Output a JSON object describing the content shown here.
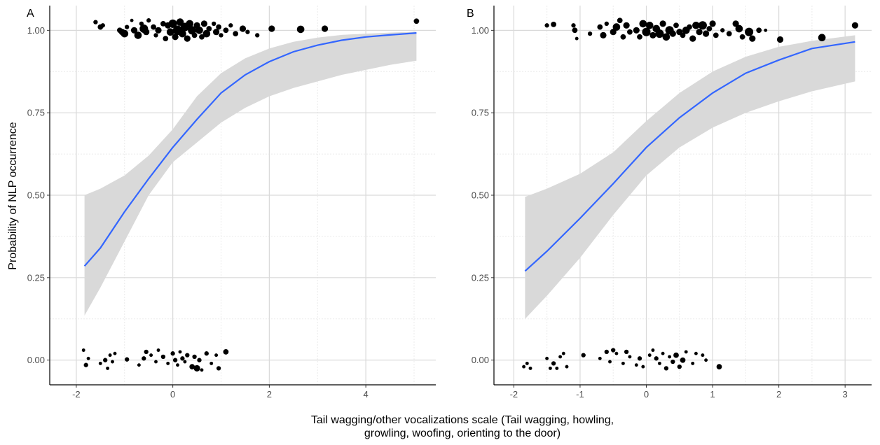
{
  "figure": {
    "ylabel": "Probability of NLP occurrence",
    "xlabel_line1": "Tail wagging/other vocalizations scale (Tail wagging, howling,",
    "xlabel_line2": "growling, woofing, orienting to the door)"
  },
  "colors": {
    "curve": "#3366ff",
    "band": "#d9d9d9",
    "points": "#000000",
    "grid_major": "#d9d9d9",
    "grid_minor": "#ebebeb"
  },
  "chart_data": [
    {
      "type": "scatter",
      "panel_label": "A",
      "xlim": [
        -2.55,
        5.45
      ],
      "ylim": [
        -0.075,
        1.075
      ],
      "x_ticks": [
        -2,
        0,
        2,
        4
      ],
      "x_tick_labels": [
        "-2",
        "0",
        "2",
        "4"
      ],
      "y_ticks": [
        0,
        0.25,
        0.5,
        0.75,
        1
      ],
      "y_tick_labels": [
        "0.00",
        "0.25",
        "0.50",
        "0.75",
        "1.00"
      ],
      "grid": true,
      "fit": {
        "x": [
          -1.83,
          -1.5,
          -1.0,
          -0.5,
          0.0,
          0.5,
          1.0,
          1.5,
          2.0,
          2.5,
          3.0,
          3.5,
          4.0,
          4.5,
          5.05
        ],
        "y": [
          0.285,
          0.34,
          0.45,
          0.55,
          0.645,
          0.73,
          0.81,
          0.865,
          0.905,
          0.935,
          0.955,
          0.97,
          0.98,
          0.986,
          0.992
        ],
        "lower": [
          0.135,
          0.22,
          0.36,
          0.5,
          0.6,
          0.66,
          0.72,
          0.765,
          0.8,
          0.825,
          0.845,
          0.865,
          0.88,
          0.895,
          0.908
        ],
        "upper": [
          0.5,
          0.52,
          0.56,
          0.62,
          0.7,
          0.8,
          0.87,
          0.915,
          0.945,
          0.965,
          0.978,
          0.986,
          0.99,
          0.993,
          0.996
        ]
      },
      "points": [
        {
          "x": -1.6,
          "y": 1.025,
          "s": 3
        },
        {
          "x": -1.5,
          "y": 1.01,
          "s": 4
        },
        {
          "x": -1.45,
          "y": 1.015,
          "s": 3
        },
        {
          "x": -1.1,
          "y": 1.0,
          "s": 4
        },
        {
          "x": -1.05,
          "y": 0.995,
          "s": 5
        },
        {
          "x": -1.0,
          "y": 0.99,
          "s": 6
        },
        {
          "x": -0.95,
          "y": 1.01,
          "s": 3
        },
        {
          "x": -0.85,
          "y": 1.03,
          "s": 2
        },
        {
          "x": -0.8,
          "y": 1.0,
          "s": 5
        },
        {
          "x": -0.72,
          "y": 0.985,
          "s": 6
        },
        {
          "x": -0.65,
          "y": 1.02,
          "s": 3
        },
        {
          "x": -0.6,
          "y": 1.005,
          "s": 7
        },
        {
          "x": -0.55,
          "y": 0.995,
          "s": 5
        },
        {
          "x": -0.5,
          "y": 1.03,
          "s": 3
        },
        {
          "x": -0.4,
          "y": 1.01,
          "s": 4
        },
        {
          "x": -0.35,
          "y": 0.985,
          "s": 3
        },
        {
          "x": -0.3,
          "y": 1.0,
          "s": 5
        },
        {
          "x": -0.2,
          "y": 1.02,
          "s": 4
        },
        {
          "x": -0.15,
          "y": 0.975,
          "s": 4
        },
        {
          "x": -0.1,
          "y": 1.015,
          "s": 5
        },
        {
          "x": -0.05,
          "y": 0.995,
          "s": 6
        },
        {
          "x": 0.0,
          "y": 1.02,
          "s": 7
        },
        {
          "x": 0.05,
          "y": 0.98,
          "s": 5
        },
        {
          "x": 0.1,
          "y": 1.0,
          "s": 8
        },
        {
          "x": 0.15,
          "y": 1.025,
          "s": 6
        },
        {
          "x": 0.2,
          "y": 0.99,
          "s": 6
        },
        {
          "x": 0.25,
          "y": 1.01,
          "s": 7
        },
        {
          "x": 0.3,
          "y": 0.975,
          "s": 5
        },
        {
          "x": 0.35,
          "y": 1.02,
          "s": 6
        },
        {
          "x": 0.4,
          "y": 1.0,
          "s": 7
        },
        {
          "x": 0.45,
          "y": 0.985,
          "s": 4
        },
        {
          "x": 0.5,
          "y": 1.015,
          "s": 5
        },
        {
          "x": 0.55,
          "y": 1.0,
          "s": 6
        },
        {
          "x": 0.6,
          "y": 0.98,
          "s": 4
        },
        {
          "x": 0.65,
          "y": 1.02,
          "s": 5
        },
        {
          "x": 0.7,
          "y": 0.99,
          "s": 6
        },
        {
          "x": 0.75,
          "y": 1.005,
          "s": 4
        },
        {
          "x": 0.85,
          "y": 1.02,
          "s": 3
        },
        {
          "x": 0.9,
          "y": 0.995,
          "s": 5
        },
        {
          "x": 0.95,
          "y": 1.01,
          "s": 4
        },
        {
          "x": 1.0,
          "y": 0.985,
          "s": 3
        },
        {
          "x": 1.1,
          "y": 1.0,
          "s": 4
        },
        {
          "x": 1.2,
          "y": 1.015,
          "s": 3
        },
        {
          "x": 1.3,
          "y": 0.99,
          "s": 4
        },
        {
          "x": 1.45,
          "y": 1.005,
          "s": 5
        },
        {
          "x": 1.55,
          "y": 0.995,
          "s": 3
        },
        {
          "x": 1.75,
          "y": 0.985,
          "s": 3
        },
        {
          "x": 2.05,
          "y": 1.005,
          "s": 5
        },
        {
          "x": 2.65,
          "y": 1.003,
          "s": 6
        },
        {
          "x": 3.15,
          "y": 1.005,
          "s": 5
        },
        {
          "x": 5.05,
          "y": 1.028,
          "s": 4
        },
        {
          "x": -1.85,
          "y": 0.03,
          "s": 2
        },
        {
          "x": -1.8,
          "y": -0.015,
          "s": 3
        },
        {
          "x": -1.75,
          "y": 0.005,
          "s": 2
        },
        {
          "x": -1.5,
          "y": -0.01,
          "s": 2
        },
        {
          "x": -1.4,
          "y": 0.0,
          "s": 3
        },
        {
          "x": -1.35,
          "y": -0.025,
          "s": 2
        },
        {
          "x": -1.3,
          "y": 0.015,
          "s": 2
        },
        {
          "x": -1.25,
          "y": -0.005,
          "s": 2
        },
        {
          "x": -1.2,
          "y": 0.02,
          "s": 2
        },
        {
          "x": -0.95,
          "y": 0.002,
          "s": 3
        },
        {
          "x": -0.7,
          "y": -0.015,
          "s": 2
        },
        {
          "x": -0.6,
          "y": 0.005,
          "s": 3
        },
        {
          "x": -0.55,
          "y": 0.025,
          "s": 3
        },
        {
          "x": -0.45,
          "y": 0.015,
          "s": 2
        },
        {
          "x": -0.35,
          "y": -0.005,
          "s": 2
        },
        {
          "x": -0.3,
          "y": 0.03,
          "s": 2
        },
        {
          "x": -0.2,
          "y": 0.01,
          "s": 3
        },
        {
          "x": -0.1,
          "y": -0.01,
          "s": 2
        },
        {
          "x": 0.0,
          "y": 0.02,
          "s": 3
        },
        {
          "x": 0.05,
          "y": 0.0,
          "s": 3
        },
        {
          "x": 0.1,
          "y": -0.015,
          "s": 2
        },
        {
          "x": 0.15,
          "y": 0.025,
          "s": 2
        },
        {
          "x": 0.2,
          "y": 0.005,
          "s": 3
        },
        {
          "x": 0.25,
          "y": -0.005,
          "s": 2
        },
        {
          "x": 0.3,
          "y": 0.015,
          "s": 3
        },
        {
          "x": 0.4,
          "y": -0.02,
          "s": 4
        },
        {
          "x": 0.45,
          "y": 0.01,
          "s": 3
        },
        {
          "x": 0.5,
          "y": -0.025,
          "s": 5
        },
        {
          "x": 0.55,
          "y": 0.0,
          "s": 3
        },
        {
          "x": 0.6,
          "y": -0.03,
          "s": 2
        },
        {
          "x": 0.7,
          "y": 0.02,
          "s": 3
        },
        {
          "x": 0.8,
          "y": -0.01,
          "s": 2
        },
        {
          "x": 0.9,
          "y": 0.015,
          "s": 2
        },
        {
          "x": 0.95,
          "y": -0.025,
          "s": 3
        },
        {
          "x": 1.1,
          "y": 0.025,
          "s": 4
        }
      ]
    },
    {
      "type": "scatter",
      "panel_label": "B",
      "xlim": [
        -2.3,
        3.4
      ],
      "ylim": [
        -0.075,
        1.075
      ],
      "x_ticks": [
        -2,
        -1,
        0,
        1,
        2,
        3
      ],
      "x_tick_labels": [
        "-2",
        "-1",
        "0",
        "1",
        "2",
        "3"
      ],
      "y_ticks": [
        0,
        0.25,
        0.5,
        0.75,
        1
      ],
      "y_tick_labels": [
        "0.00",
        "0.25",
        "0.50",
        "0.75",
        "1.00"
      ],
      "grid": true,
      "fit": {
        "x": [
          -1.83,
          -1.5,
          -1.0,
          -0.5,
          0.0,
          0.5,
          1.0,
          1.5,
          2.0,
          2.5,
          3.15
        ],
        "y": [
          0.27,
          0.33,
          0.43,
          0.535,
          0.645,
          0.735,
          0.81,
          0.87,
          0.91,
          0.945,
          0.965
        ],
        "lower": [
          0.125,
          0.195,
          0.31,
          0.44,
          0.56,
          0.645,
          0.705,
          0.75,
          0.785,
          0.815,
          0.845
        ],
        "upper": [
          0.495,
          0.52,
          0.565,
          0.63,
          0.725,
          0.81,
          0.875,
          0.92,
          0.95,
          0.968,
          0.985
        ]
      },
      "points": [
        {
          "x": -1.5,
          "y": 1.015,
          "s": 3
        },
        {
          "x": -1.4,
          "y": 1.018,
          "s": 4
        },
        {
          "x": -1.1,
          "y": 1.015,
          "s": 3
        },
        {
          "x": -1.08,
          "y": 1.0,
          "s": 4
        },
        {
          "x": -1.05,
          "y": 0.975,
          "s": 2
        },
        {
          "x": -0.85,
          "y": 0.99,
          "s": 3
        },
        {
          "x": -0.7,
          "y": 1.01,
          "s": 4
        },
        {
          "x": -0.65,
          "y": 0.985,
          "s": 5
        },
        {
          "x": -0.6,
          "y": 1.02,
          "s": 3
        },
        {
          "x": -0.5,
          "y": 0.995,
          "s": 5
        },
        {
          "x": -0.45,
          "y": 1.01,
          "s": 6
        },
        {
          "x": -0.4,
          "y": 1.03,
          "s": 4
        },
        {
          "x": -0.35,
          "y": 0.98,
          "s": 4
        },
        {
          "x": -0.3,
          "y": 1.015,
          "s": 5
        },
        {
          "x": -0.25,
          "y": 0.995,
          "s": 4
        },
        {
          "x": -0.15,
          "y": 1.0,
          "s": 5
        },
        {
          "x": -0.1,
          "y": 0.98,
          "s": 4
        },
        {
          "x": -0.05,
          "y": 1.02,
          "s": 6
        },
        {
          "x": 0.0,
          "y": 0.995,
          "s": 7
        },
        {
          "x": 0.05,
          "y": 1.015,
          "s": 6
        },
        {
          "x": 0.1,
          "y": 0.985,
          "s": 5
        },
        {
          "x": 0.15,
          "y": 1.005,
          "s": 6
        },
        {
          "x": 0.2,
          "y": 0.99,
          "s": 7
        },
        {
          "x": 0.25,
          "y": 1.02,
          "s": 5
        },
        {
          "x": 0.3,
          "y": 0.98,
          "s": 6
        },
        {
          "x": 0.35,
          "y": 1.0,
          "s": 7
        },
        {
          "x": 0.4,
          "y": 0.99,
          "s": 5
        },
        {
          "x": 0.45,
          "y": 1.015,
          "s": 4
        },
        {
          "x": 0.5,
          "y": 0.995,
          "s": 5
        },
        {
          "x": 0.55,
          "y": 0.985,
          "s": 4
        },
        {
          "x": 0.6,
          "y": 1.0,
          "s": 6
        },
        {
          "x": 0.65,
          "y": 1.01,
          "s": 4
        },
        {
          "x": 0.7,
          "y": 0.975,
          "s": 5
        },
        {
          "x": 0.75,
          "y": 1.015,
          "s": 6
        },
        {
          "x": 0.8,
          "y": 0.995,
          "s": 5
        },
        {
          "x": 0.85,
          "y": 1.015,
          "s": 7
        },
        {
          "x": 0.9,
          "y": 0.99,
          "s": 5
        },
        {
          "x": 0.95,
          "y": 1.005,
          "s": 4
        },
        {
          "x": 1.0,
          "y": 1.02,
          "s": 5
        },
        {
          "x": 1.05,
          "y": 0.985,
          "s": 4
        },
        {
          "x": 1.15,
          "y": 1.0,
          "s": 3
        },
        {
          "x": 1.25,
          "y": 0.99,
          "s": 4
        },
        {
          "x": 1.35,
          "y": 1.02,
          "s": 5
        },
        {
          "x": 1.4,
          "y": 1.005,
          "s": 6
        },
        {
          "x": 1.45,
          "y": 0.98,
          "s": 4
        },
        {
          "x": 1.55,
          "y": 0.995,
          "s": 7
        },
        {
          "x": 1.6,
          "y": 0.975,
          "s": 5
        },
        {
          "x": 1.7,
          "y": 1.0,
          "s": 4
        },
        {
          "x": 1.8,
          "y": 1.0,
          "s": 2
        },
        {
          "x": 2.02,
          "y": 0.972,
          "s": 5
        },
        {
          "x": 2.65,
          "y": 0.978,
          "s": 6
        },
        {
          "x": 3.15,
          "y": 1.015,
          "s": 5
        },
        {
          "x": -1.85,
          "y": -0.02,
          "s": 2
        },
        {
          "x": -1.8,
          "y": -0.01,
          "s": 2
        },
        {
          "x": -1.75,
          "y": -0.025,
          "s": 2
        },
        {
          "x": -1.5,
          "y": 0.005,
          "s": 2
        },
        {
          "x": -1.45,
          "y": -0.025,
          "s": 2
        },
        {
          "x": -1.4,
          "y": -0.01,
          "s": 3
        },
        {
          "x": -1.35,
          "y": -0.025,
          "s": 2
        },
        {
          "x": -1.3,
          "y": 0.01,
          "s": 2
        },
        {
          "x": -1.25,
          "y": 0.02,
          "s": 2
        },
        {
          "x": -1.2,
          "y": -0.02,
          "s": 2
        },
        {
          "x": -0.95,
          "y": 0.015,
          "s": 3
        },
        {
          "x": -0.7,
          "y": 0.005,
          "s": 2
        },
        {
          "x": -0.6,
          "y": 0.025,
          "s": 3
        },
        {
          "x": -0.55,
          "y": -0.005,
          "s": 2
        },
        {
          "x": -0.5,
          "y": 0.03,
          "s": 3
        },
        {
          "x": -0.45,
          "y": 0.02,
          "s": 2
        },
        {
          "x": -0.35,
          "y": -0.01,
          "s": 2
        },
        {
          "x": -0.3,
          "y": 0.025,
          "s": 3
        },
        {
          "x": -0.25,
          "y": 0.01,
          "s": 2
        },
        {
          "x": -0.15,
          "y": -0.015,
          "s": 2
        },
        {
          "x": -0.1,
          "y": 0.005,
          "s": 3
        },
        {
          "x": -0.05,
          "y": -0.02,
          "s": 2
        },
        {
          "x": 0.05,
          "y": 0.015,
          "s": 2
        },
        {
          "x": 0.1,
          "y": 0.03,
          "s": 2
        },
        {
          "x": 0.15,
          "y": 0.005,
          "s": 3
        },
        {
          "x": 0.2,
          "y": -0.01,
          "s": 2
        },
        {
          "x": 0.25,
          "y": 0.02,
          "s": 2
        },
        {
          "x": 0.3,
          "y": -0.025,
          "s": 3
        },
        {
          "x": 0.35,
          "y": 0.01,
          "s": 2
        },
        {
          "x": 0.4,
          "y": -0.005,
          "s": 3
        },
        {
          "x": 0.45,
          "y": 0.015,
          "s": 4
        },
        {
          "x": 0.5,
          "y": -0.02,
          "s": 3
        },
        {
          "x": 0.55,
          "y": 0.0,
          "s": 4
        },
        {
          "x": 0.6,
          "y": 0.025,
          "s": 2
        },
        {
          "x": 0.7,
          "y": -0.01,
          "s": 2
        },
        {
          "x": 0.75,
          "y": 0.02,
          "s": 2
        },
        {
          "x": 0.85,
          "y": 0.015,
          "s": 2
        },
        {
          "x": 0.9,
          "y": 0.0,
          "s": 2
        },
        {
          "x": 1.1,
          "y": -0.02,
          "s": 4
        }
      ]
    }
  ]
}
